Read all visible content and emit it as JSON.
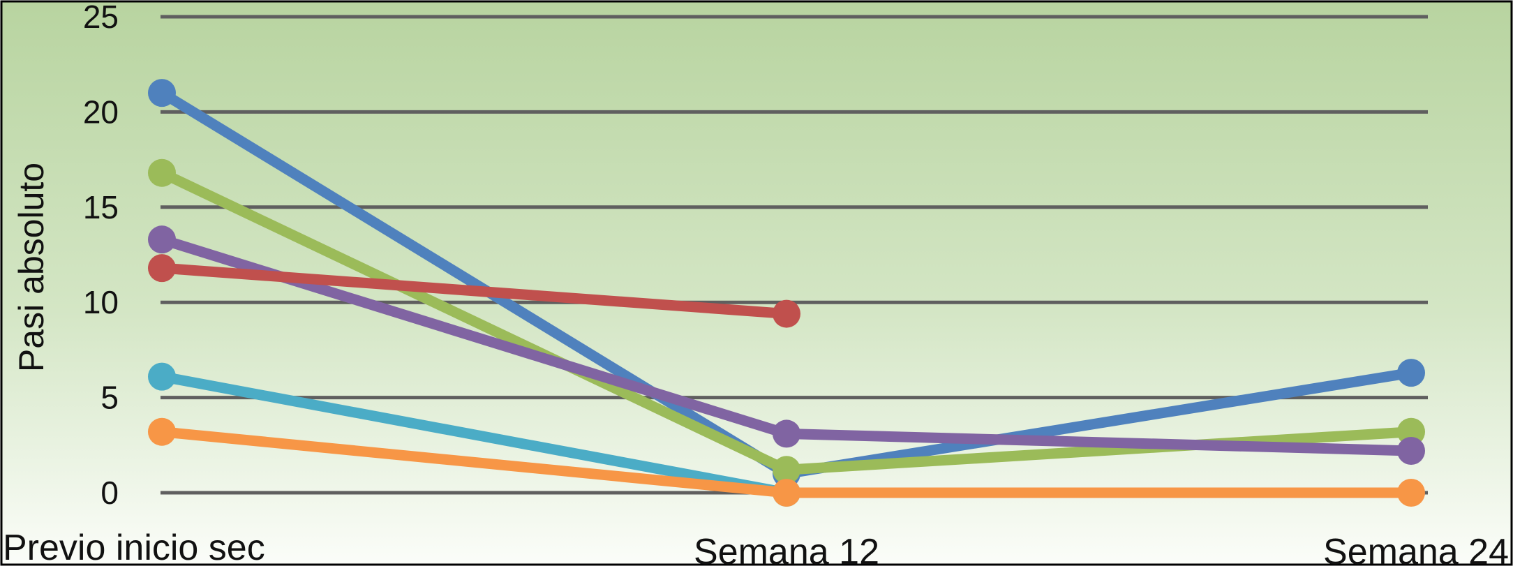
{
  "chart_data": {
    "type": "line",
    "ylabel": "Pasi absoluto",
    "xlabel": "",
    "ylim": [
      0,
      25
    ],
    "yticks": [
      0,
      5,
      10,
      15,
      20,
      25
    ],
    "categories": [
      "Previo inicio sec",
      "Semana 12",
      "Semana 24"
    ],
    "grid": true,
    "series": [
      {
        "color": "#4f81bd",
        "values": [
          21.0,
          1.0,
          6.3
        ]
      },
      {
        "color": "#9bbb59",
        "values": [
          16.8,
          1.2,
          3.2
        ]
      },
      {
        "color": "#8064a2",
        "values": [
          13.3,
          3.1,
          2.2
        ]
      },
      {
        "color": "#c0504d",
        "values": [
          11.8,
          9.4,
          null
        ]
      },
      {
        "color": "#4bacc6",
        "values": [
          6.1,
          0,
          null
        ]
      },
      {
        "color": "#f79646",
        "values": [
          3.2,
          0,
          0
        ]
      }
    ]
  },
  "colors": {
    "background_top": "#b9d5a2",
    "background_bottom": "#ffffff",
    "gridline": "#5f5f5f"
  }
}
